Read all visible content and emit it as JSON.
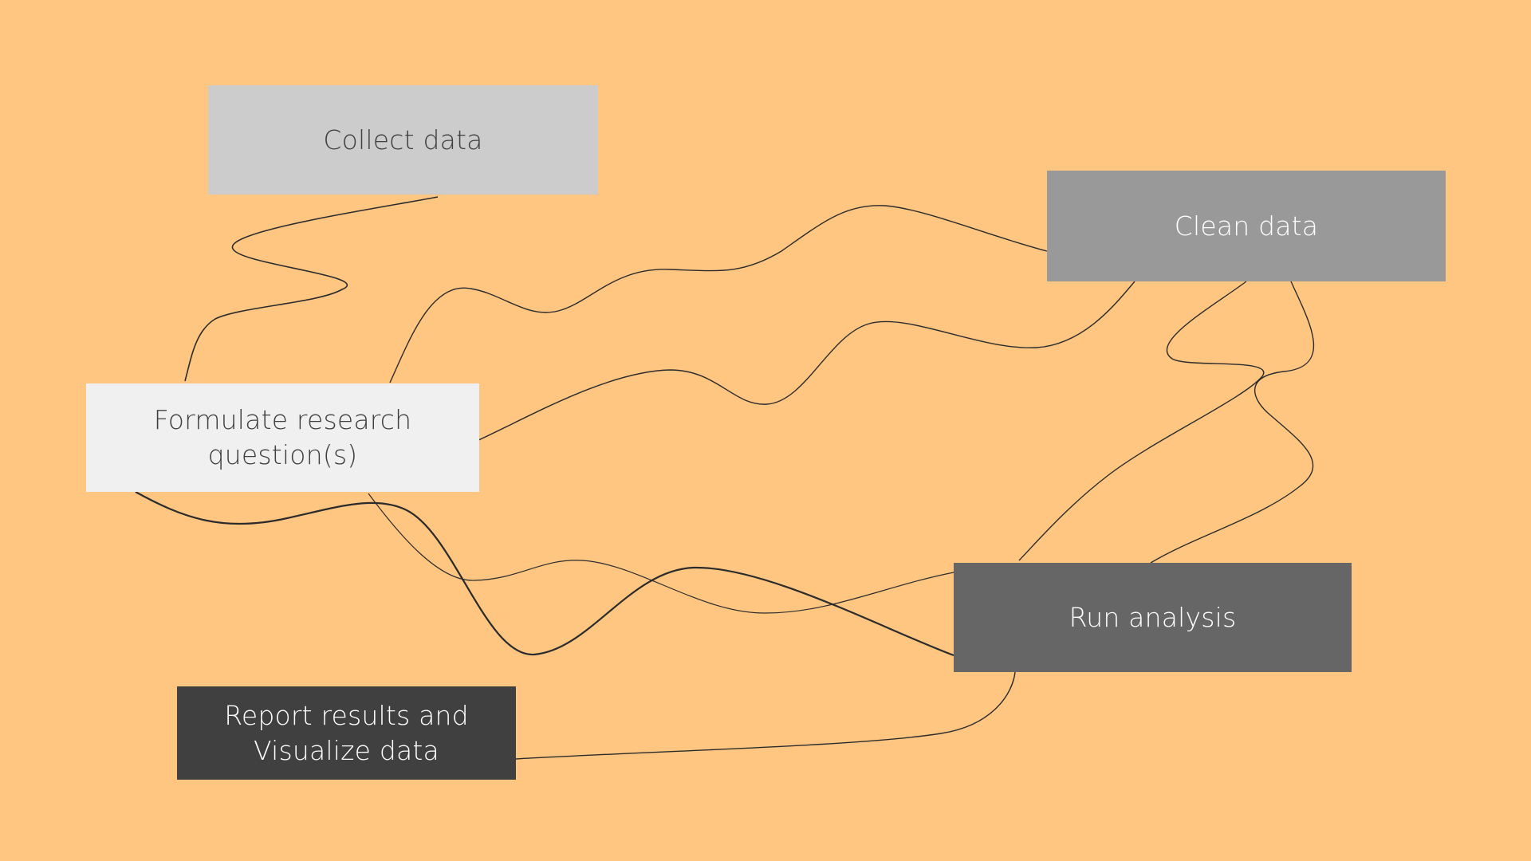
{
  "colors": {
    "background": "#FFC682",
    "connector": "#2b2b2b"
  },
  "nodes": {
    "collect": {
      "label": "Collect data",
      "fill": "#CCCCCC",
      "text_color": "#3f3f3f"
    },
    "clean": {
      "label": "Clean data",
      "fill": "#999999",
      "text_color": "#ffffff"
    },
    "formulate": {
      "label": "Formulate research\nquestion(s)",
      "fill": "#F0F0F0",
      "text_color": "#3f3f3f"
    },
    "run": {
      "label": "Run analysis",
      "fill": "#666666",
      "text_color": "#ffffff"
    },
    "report": {
      "label": "Report results and\nVisualize data",
      "fill": "#404040",
      "text_color": "#ffffff"
    }
  },
  "edges": [
    {
      "from": "collect",
      "to": "formulate"
    },
    {
      "from": "formulate",
      "to": "clean"
    },
    {
      "from": "formulate",
      "to": "clean"
    },
    {
      "from": "formulate",
      "to": "run"
    },
    {
      "from": "formulate",
      "to": "run"
    },
    {
      "from": "formulate",
      "to": "run"
    },
    {
      "from": "clean",
      "to": "run"
    },
    {
      "from": "clean",
      "to": "run"
    },
    {
      "from": "run",
      "to": "report"
    }
  ]
}
